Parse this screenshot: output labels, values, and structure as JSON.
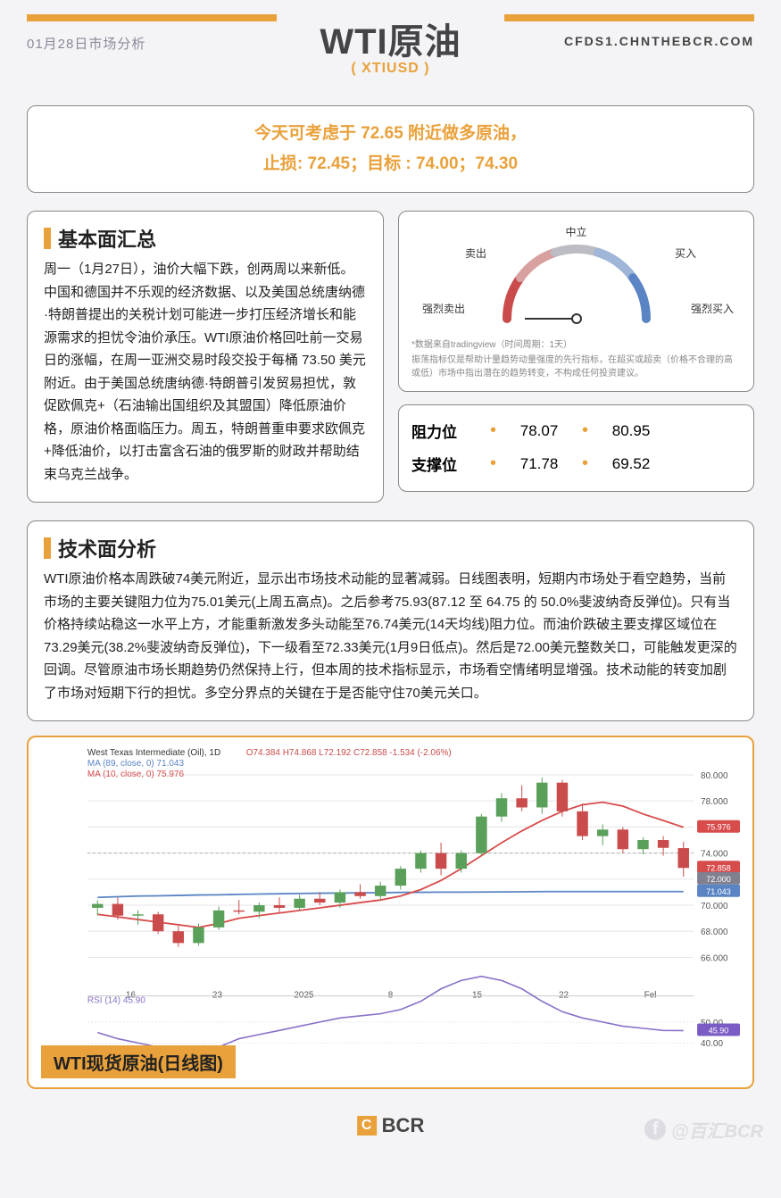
{
  "header": {
    "date": "01月28日市场分析",
    "url": "CFDS1.CHNTHEBCR.COM",
    "title": "WTI原油",
    "subtitle": "( XTIUSD )",
    "accent_color": "#e9a13b"
  },
  "suggestion": {
    "line1": "今天可考虑于 72.65 附近做多原油，",
    "line2": "止损: 72.45；目标 : 74.00；74.30"
  },
  "fundamental": {
    "title": "基本面汇总",
    "text": "周一（1月27日），油价大幅下跌，创两周以来新低。中国和德国并不乐观的经济数据、以及美国总统唐纳德·特朗普提出的关税计划可能进一步打压经济增长和能源需求的担忧令油价承压。WTI原油价格回吐前一交易日的涨幅，在周一亚洲交易时段交投于每桶 73.50 美元附近。由于美国总统唐纳德·特朗普引发贸易担忧，敦促欧佩克+（石油输出国组织及其盟国）降低原油价格，原油价格面临压力。周五，特朗普重申要求欧佩克+降低油价，以打击富含石油的俄罗斯的财政并帮助结束乌克兰战争。"
  },
  "gauge": {
    "labels": {
      "neutral": "中立",
      "sell": "卖出",
      "buy": "买入",
      "strong_sell": "强烈卖出",
      "strong_buy": "强烈买入"
    },
    "needle_angle": 180,
    "colors": {
      "strong_sell": "#c94b4b",
      "sell": "#d9a0a0",
      "neutral": "#bcbcc4",
      "buy": "#9fb6d9",
      "strong_buy": "#5a84c4"
    },
    "note1": "*数据来自tradingview（时间周期：1天）",
    "note2": "振荡指标仅是帮助计量趋势动量强度的先行指标，在超买或超卖（价格不合理的高或低）市场中指出潜在的趋势转变，不构成任何投资建议。"
  },
  "levels": {
    "resistance_label": "阻力位",
    "support_label": "支撑位",
    "resistance": [
      "78.07",
      "80.95"
    ],
    "support": [
      "71.78",
      "69.52"
    ]
  },
  "technical": {
    "title": "技术面分析",
    "text": "WTI原油价格本周跌破74美元附近，显示出市场技术动能的显著减弱。日线图表明，短期内市场处于看空趋势，当前市场的主要关键阻力位为75.01美元(上周五高点)。之后参考75.93(87.12 至 64.75 的 50.0%斐波纳奇反弹位)。只有当价格持续站稳这一水平上方，才能重新激发多头动能至76.74美元(14天均线)阻力位。而油价跌破主要支撑区域位在73.29美元(38.2%斐波纳奇反弹位)，下一级看至72.33美元(1月9日低点)。然后是72.00美元整数关口，可能触发更深的回调。尽管原油市场长期趋势仍然保持上行，但本周的技术指标显示，市场看空情绪明显增强。技术动能的转变加剧了市场对短期下行的担忧。多空分界点的关键在于是否能守住70美元关口。"
  },
  "chart": {
    "caption": "WTI现货原油(日线图)",
    "header": {
      "name": "West Texas Intermediate (Oil), 1D",
      "o": "O74.384",
      "h": "H74.868",
      "l": "L72.192",
      "c": "C72.858",
      "change": "-1.534 (-2.06%)",
      "ma89_label": "MA (89, close, 0)",
      "ma89": "71.043",
      "ma10_label": "MA (10, close, 0)",
      "ma10": "75.976",
      "rsi_label": "RSI (14)",
      "rsi": "45.90"
    },
    "y_axis": {
      "min": 64,
      "max": 80,
      "ticks": [
        66,
        68,
        70,
        72,
        74,
        76,
        78,
        80
      ],
      "tick_labels": [
        "66.000",
        "68.000",
        "70.000",
        "72.000",
        "74.000",
        "76.000",
        "78.000",
        "80.000"
      ]
    },
    "x_labels": [
      "16",
      "23",
      "2025",
      "8",
      "15",
      "22",
      "Fel"
    ],
    "price_badges": [
      {
        "value": "75.976",
        "y": 75.976,
        "bg": "#d84b4b"
      },
      {
        "value": "72.858",
        "y": 72.858,
        "bg": "#d84b4b"
      },
      {
        "value": "72.000",
        "y": 72.0,
        "bg": "#808090"
      },
      {
        "value": "71.043",
        "y": 71.043,
        "bg": "#5a84c4"
      }
    ],
    "rsi_badge": {
      "value": "45.90",
      "bg": "#7b5cc4"
    },
    "rsi_y": {
      "min": 30,
      "max": 60,
      "ticks": [
        40,
        50
      ],
      "tick_labels": [
        "40.00",
        "50.00"
      ]
    },
    "colors": {
      "ma89": "#5a84c4",
      "ma10": "#d84b4b",
      "up": "#5aa05a",
      "down": "#c94b4b",
      "rsi": "#8870c8",
      "grid": "#e6e6ea",
      "text": "#555"
    },
    "ma89_series": [
      70.6,
      70.65,
      70.7,
      70.72,
      70.75,
      70.78,
      70.8,
      70.83,
      70.86,
      70.88,
      70.9,
      70.92,
      70.93,
      70.95,
      70.96,
      70.98,
      70.99,
      71.0,
      71.0,
      71.01,
      71.02,
      71.03,
      71.04,
      71.04,
      71.04,
      71.043,
      71.043,
      71.043,
      71.043,
      71.043
    ],
    "ma10_series": [
      69.3,
      69.1,
      68.9,
      68.7,
      68.5,
      68.3,
      68.6,
      69.0,
      69.2,
      69.4,
      69.6,
      69.8,
      70.0,
      70.2,
      70.4,
      70.7,
      71.2,
      71.9,
      72.8,
      73.8,
      74.8,
      75.7,
      76.5,
      77.2,
      77.7,
      77.9,
      77.6,
      77.0,
      76.5,
      75.976
    ],
    "rsi_series": [
      45,
      42,
      40,
      38,
      36,
      35,
      38,
      42,
      44,
      46,
      48,
      50,
      52,
      53,
      54,
      56,
      60,
      66,
      70,
      72,
      70,
      66,
      60,
      55,
      52,
      50,
      48,
      47,
      46,
      45.9
    ],
    "candles": [
      {
        "o": 69.8,
        "h": 70.4,
        "l": 69.2,
        "c": 70.1
      },
      {
        "o": 70.1,
        "h": 70.6,
        "l": 68.9,
        "c": 69.2
      },
      {
        "o": 69.2,
        "h": 69.6,
        "l": 68.5,
        "c": 69.3
      },
      {
        "o": 69.3,
        "h": 69.5,
        "l": 67.8,
        "c": 68.0
      },
      {
        "o": 68.0,
        "h": 68.4,
        "l": 66.8,
        "c": 67.1
      },
      {
        "o": 67.1,
        "h": 68.6,
        "l": 66.9,
        "c": 68.3
      },
      {
        "o": 68.3,
        "h": 69.9,
        "l": 68.1,
        "c": 69.6
      },
      {
        "o": 69.6,
        "h": 70.4,
        "l": 69.3,
        "c": 69.5
      },
      {
        "o": 69.5,
        "h": 70.2,
        "l": 69.0,
        "c": 70.0
      },
      {
        "o": 70.0,
        "h": 70.6,
        "l": 69.4,
        "c": 69.8
      },
      {
        "o": 69.8,
        "h": 70.8,
        "l": 69.6,
        "c": 70.5
      },
      {
        "o": 70.5,
        "h": 71.0,
        "l": 70.0,
        "c": 70.2
      },
      {
        "o": 70.2,
        "h": 71.2,
        "l": 69.8,
        "c": 71.0
      },
      {
        "o": 71.0,
        "h": 71.6,
        "l": 70.5,
        "c": 70.7
      },
      {
        "o": 70.7,
        "h": 71.8,
        "l": 70.4,
        "c": 71.5
      },
      {
        "o": 71.5,
        "h": 73.0,
        "l": 71.2,
        "c": 72.8
      },
      {
        "o": 72.8,
        "h": 74.2,
        "l": 72.5,
        "c": 74.0
      },
      {
        "o": 74.0,
        "h": 74.8,
        "l": 72.3,
        "c": 72.8
      },
      {
        "o": 72.8,
        "h": 74.2,
        "l": 72.5,
        "c": 74.0
      },
      {
        "o": 74.0,
        "h": 77.0,
        "l": 73.8,
        "c": 76.8
      },
      {
        "o": 76.8,
        "h": 78.6,
        "l": 76.4,
        "c": 78.2
      },
      {
        "o": 78.2,
        "h": 79.2,
        "l": 77.2,
        "c": 77.5
      },
      {
        "o": 77.5,
        "h": 79.8,
        "l": 77.0,
        "c": 79.4
      },
      {
        "o": 79.4,
        "h": 79.6,
        "l": 76.8,
        "c": 77.2
      },
      {
        "o": 77.2,
        "h": 77.8,
        "l": 75.0,
        "c": 75.3
      },
      {
        "o": 75.3,
        "h": 76.2,
        "l": 74.6,
        "c": 75.8
      },
      {
        "o": 75.8,
        "h": 76.0,
        "l": 74.0,
        "c": 74.3
      },
      {
        "o": 74.3,
        "h": 75.2,
        "l": 73.9,
        "c": 75.0
      },
      {
        "o": 75.0,
        "h": 75.3,
        "l": 73.8,
        "c": 74.4
      },
      {
        "o": 74.38,
        "h": 74.87,
        "l": 72.19,
        "c": 72.86
      }
    ]
  },
  "footer": {
    "logo": "BCR",
    "watermark": "@百汇BCR"
  }
}
